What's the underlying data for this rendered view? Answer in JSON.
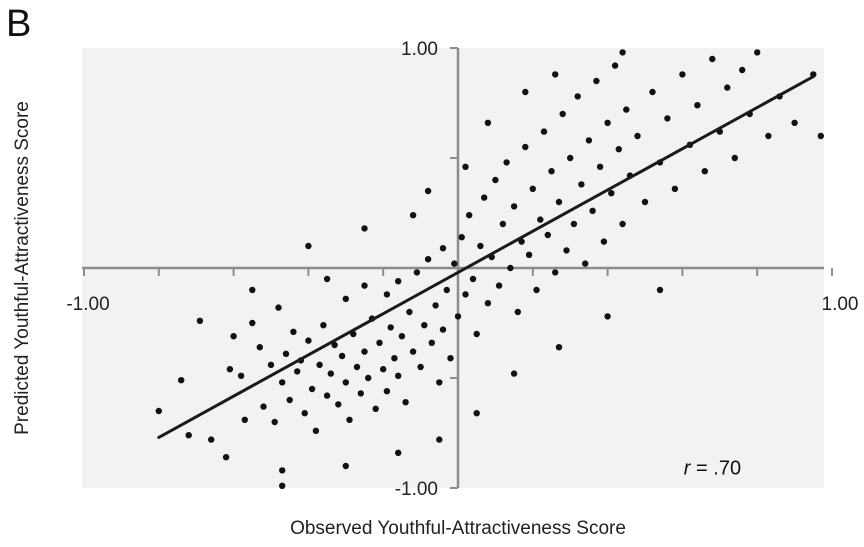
{
  "panel_label": "B",
  "colors": {
    "plot_background": "#f2f2f2",
    "axis": "#8c8c8c",
    "points": "#111111",
    "fit_line": "#1a1a1a"
  },
  "chart_data": {
    "type": "scatter",
    "title": "",
    "xlabel": "Observed Youthful-Attractiveness Score",
    "ylabel": "Predicted Youthful-Attractiveness Score",
    "xlim": [
      -1.0,
      1.0
    ],
    "ylim": [
      -1.0,
      1.0
    ],
    "x_ticks": [
      -1.0,
      -0.8,
      -0.6,
      -0.4,
      -0.2,
      0,
      0.2,
      0.4,
      0.6,
      0.8,
      1.0
    ],
    "y_ticks": [
      -1.0,
      -0.5,
      0,
      0.5,
      1.0
    ],
    "x_tick_labels": [
      {
        "value": -1.0,
        "text": "-1.00"
      },
      {
        "value": 1.0,
        "text": "1.00"
      }
    ],
    "y_tick_labels": [
      {
        "value": 1.0,
        "text": "1.00"
      },
      {
        "value": -1.0,
        "text": "-1.00"
      }
    ],
    "grid": false,
    "axes_cross_at_origin": true,
    "fit_line": {
      "x": [
        -0.8,
        0.95
      ],
      "y": [
        -0.77,
        0.87
      ]
    },
    "annotation": {
      "prefix": "r",
      "text": " = .70",
      "x": 0.7,
      "y": -0.92
    },
    "points": [
      [
        -0.8,
        -0.65
      ],
      [
        -0.72,
        -0.76
      ],
      [
        -0.69,
        -0.24
      ],
      [
        -0.66,
        -0.78
      ],
      [
        -0.61,
        -0.46
      ],
      [
        -0.6,
        -0.31
      ],
      [
        -0.58,
        -0.49
      ],
      [
        -0.57,
        -0.69
      ],
      [
        -0.55,
        -0.1
      ],
      [
        -0.55,
        -0.25
      ],
      [
        -0.53,
        -0.36
      ],
      [
        -0.52,
        -0.63
      ],
      [
        -0.5,
        -0.44
      ],
      [
        -0.49,
        -0.7
      ],
      [
        -0.48,
        -0.18
      ],
      [
        -0.47,
        -0.52
      ],
      [
        -0.47,
        -0.99
      ],
      [
        -0.46,
        -0.39
      ],
      [
        -0.45,
        -0.6
      ],
      [
        -0.44,
        -0.29
      ],
      [
        -0.43,
        -0.47
      ],
      [
        -0.42,
        -0.42
      ],
      [
        -0.41,
        -0.66
      ],
      [
        -0.4,
        -0.33
      ],
      [
        -0.39,
        -0.55
      ],
      [
        -0.38,
        -0.74
      ],
      [
        -0.37,
        -0.44
      ],
      [
        -0.36,
        -0.26
      ],
      [
        -0.35,
        -0.58
      ],
      [
        -0.34,
        -0.48
      ],
      [
        -0.33,
        -0.35
      ],
      [
        -0.32,
        -0.62
      ],
      [
        -0.31,
        -0.4
      ],
      [
        -0.3,
        -0.14
      ],
      [
        -0.3,
        -0.52
      ],
      [
        -0.29,
        -0.69
      ],
      [
        -0.28,
        -0.3
      ],
      [
        -0.27,
        -0.45
      ],
      [
        -0.26,
        -0.57
      ],
      [
        -0.25,
        -0.08
      ],
      [
        -0.25,
        -0.38
      ],
      [
        -0.24,
        -0.5
      ],
      [
        -0.23,
        -0.23
      ],
      [
        -0.22,
        -0.64
      ],
      [
        -0.21,
        -0.34
      ],
      [
        -0.2,
        -0.46
      ],
      [
        -0.19,
        -0.12
      ],
      [
        -0.19,
        -0.56
      ],
      [
        -0.18,
        -0.27
      ],
      [
        -0.17,
        -0.41
      ],
      [
        -0.16,
        -0.06
      ],
      [
        -0.16,
        -0.49
      ],
      [
        -0.15,
        -0.31
      ],
      [
        -0.14,
        -0.61
      ],
      [
        -0.13,
        -0.2
      ],
      [
        -0.12,
        -0.38
      ],
      [
        -0.11,
        -0.02
      ],
      [
        -0.1,
        -0.45
      ],
      [
        -0.09,
        -0.26
      ],
      [
        -0.08,
        0.04
      ],
      [
        -0.07,
        -0.34
      ],
      [
        -0.06,
        -0.17
      ],
      [
        -0.05,
        -0.52
      ],
      [
        -0.04,
        0.09
      ],
      [
        -0.04,
        -0.28
      ],
      [
        -0.03,
        -0.1
      ],
      [
        -0.02,
        -0.41
      ],
      [
        -0.01,
        0.02
      ],
      [
        0.0,
        -0.22
      ],
      [
        0.01,
        0.14
      ],
      [
        0.02,
        -0.12
      ],
      [
        0.03,
        0.24
      ],
      [
        0.04,
        -0.05
      ],
      [
        0.05,
        -0.3
      ],
      [
        0.06,
        0.1
      ],
      [
        0.07,
        0.32
      ],
      [
        0.08,
        -0.16
      ],
      [
        0.09,
        0.05
      ],
      [
        0.1,
        0.4
      ],
      [
        0.11,
        -0.08
      ],
      [
        0.12,
        0.2
      ],
      [
        0.13,
        0.48
      ],
      [
        0.14,
        0.0
      ],
      [
        0.15,
        0.28
      ],
      [
        0.16,
        -0.2
      ],
      [
        0.17,
        0.12
      ],
      [
        0.18,
        0.55
      ],
      [
        0.19,
        0.06
      ],
      [
        0.2,
        0.36
      ],
      [
        0.21,
        -0.1
      ],
      [
        0.22,
        0.22
      ],
      [
        0.23,
        0.62
      ],
      [
        0.24,
        0.15
      ],
      [
        0.25,
        0.44
      ],
      [
        0.26,
        -0.02
      ],
      [
        0.27,
        0.3
      ],
      [
        0.28,
        0.7
      ],
      [
        0.29,
        0.08
      ],
      [
        0.3,
        0.5
      ],
      [
        0.31,
        0.2
      ],
      [
        0.32,
        0.78
      ],
      [
        0.33,
        0.38
      ],
      [
        0.34,
        0.02
      ],
      [
        0.35,
        0.58
      ],
      [
        0.36,
        0.26
      ],
      [
        0.37,
        0.85
      ],
      [
        0.38,
        0.46
      ],
      [
        0.39,
        0.12
      ],
      [
        0.4,
        0.66
      ],
      [
        0.41,
        0.34
      ],
      [
        0.42,
        0.92
      ],
      [
        0.43,
        0.54
      ],
      [
        0.44,
        0.2
      ],
      [
        0.45,
        0.72
      ],
      [
        0.46,
        0.42
      ],
      [
        0.48,
        0.6
      ],
      [
        0.5,
        0.3
      ],
      [
        0.52,
        0.8
      ],
      [
        0.54,
        0.48
      ],
      [
        0.56,
        0.68
      ],
      [
        0.58,
        0.36
      ],
      [
        0.6,
        0.88
      ],
      [
        0.62,
        0.56
      ],
      [
        0.64,
        0.74
      ],
      [
        0.66,
        0.44
      ],
      [
        0.68,
        0.95
      ],
      [
        0.7,
        0.62
      ],
      [
        0.72,
        0.82
      ],
      [
        0.74,
        0.5
      ],
      [
        0.76,
        0.9
      ],
      [
        0.78,
        0.7
      ],
      [
        0.8,
        0.98
      ],
      [
        0.83,
        0.6
      ],
      [
        0.86,
        0.78
      ],
      [
        0.9,
        0.66
      ],
      [
        0.95,
        0.88
      ],
      [
        0.97,
        0.6
      ],
      [
        -0.62,
        -0.86
      ],
      [
        -0.47,
        -0.92
      ],
      [
        -0.3,
        -0.9
      ],
      [
        -0.16,
        -0.84
      ],
      [
        -0.05,
        -0.78
      ],
      [
        0.05,
        -0.66
      ],
      [
        0.15,
        -0.48
      ],
      [
        0.27,
        -0.36
      ],
      [
        0.4,
        -0.22
      ],
      [
        0.54,
        -0.1
      ],
      [
        -0.74,
        -0.51
      ],
      [
        -0.35,
        -0.05
      ],
      [
        -0.25,
        0.18
      ],
      [
        -0.12,
        0.24
      ],
      [
        0.02,
        0.46
      ],
      [
        0.08,
        0.66
      ],
      [
        0.18,
        0.8
      ],
      [
        0.26,
        0.88
      ],
      [
        -0.4,
        0.1
      ],
      [
        -0.08,
        0.35
      ],
      [
        0.44,
        0.98
      ]
    ]
  }
}
